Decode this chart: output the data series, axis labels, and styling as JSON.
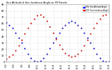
{
  "title": "Sun Altitude & Sun Incidence Angle on PV Panels",
  "legend_blue": "HOz: Sun Altitude Angle",
  "legend_red": "DIFF: Sun Incidence Angle",
  "background_color": "#ffffff",
  "plot_bg_color": "#ffffff",
  "grid_color": "#cccccc",
  "blue_color": "#0000cc",
  "red_color": "#cc0000",
  "title_color": "#000000",
  "tick_color": "#000000",
  "legend_blue_color": "#0000ff",
  "legend_red_color": "#ff0000",
  "ylim": [
    0,
    90
  ],
  "xlim": [
    0,
    33
  ],
  "time_labels": [
    "5:15",
    "6:30",
    "7:45",
    "9:00",
    "10:15",
    "11:30",
    "12:45",
    "14:00",
    "15:15",
    "16:30",
    "17:45",
    "19:00",
    "20:15",
    "21:30"
  ],
  "blue_x": [
    0,
    1,
    2,
    3,
    4,
    5,
    6,
    7,
    8,
    9,
    10,
    11,
    12,
    13,
    14,
    15,
    16,
    17,
    18,
    19,
    20,
    21,
    22,
    23,
    24,
    25,
    26,
    27,
    28,
    29,
    30,
    31,
    32,
    33
  ],
  "blue_y": [
    62,
    58,
    53,
    46,
    38,
    30,
    21,
    13,
    6,
    2,
    1,
    2,
    6,
    13,
    21,
    30,
    38,
    46,
    53,
    58,
    62,
    64,
    62,
    58,
    53,
    46,
    38,
    30,
    21,
    13,
    6,
    2,
    1,
    0
  ],
  "red_x": [
    0,
    1,
    2,
    3,
    4,
    5,
    6,
    7,
    8,
    9,
    10,
    11,
    12,
    13,
    14,
    15,
    16,
    17,
    18,
    19,
    20,
    21,
    22,
    23,
    24,
    25,
    26,
    27,
    28,
    29,
    30,
    31,
    32,
    33
  ],
  "red_y": [
    5,
    8,
    12,
    18,
    26,
    35,
    44,
    53,
    61,
    68,
    73,
    74,
    71,
    64,
    55,
    45,
    36,
    27,
    20,
    14,
    10,
    8,
    9,
    13,
    18,
    26,
    35,
    44,
    53,
    61,
    68,
    73,
    74,
    0
  ],
  "yticks": [
    0,
    10,
    20,
    30,
    40,
    50,
    60,
    70,
    80,
    90
  ]
}
